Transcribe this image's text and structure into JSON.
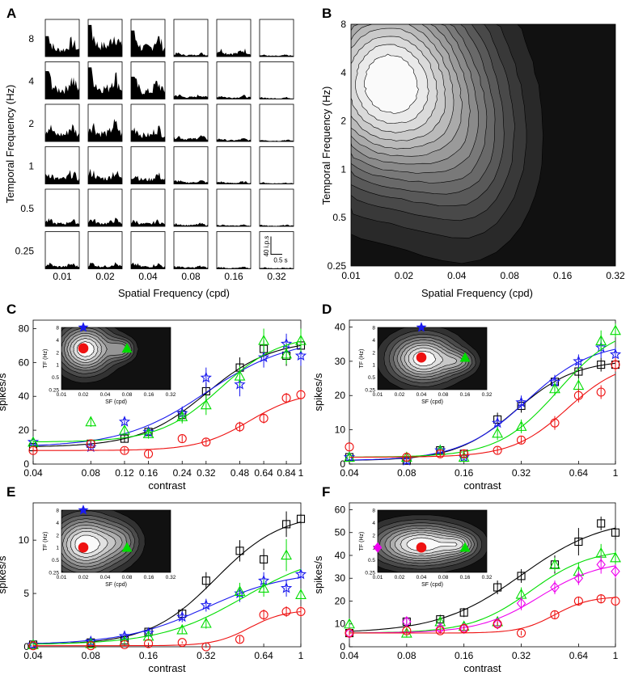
{
  "panel_letters": [
    "A",
    "B",
    "C",
    "D",
    "E",
    "F"
  ],
  "panel_a": {
    "tf_labels": [
      "8",
      "4",
      "2",
      "1",
      "0.5",
      "0.25"
    ],
    "sf_labels": [
      "0.01",
      "0.02",
      "0.04",
      "0.08",
      "0.16",
      "0.32"
    ],
    "xlabel": "Spatial Frequency (cpd)",
    "ylabel": "Temporal Frequency (Hz)",
    "scale_bar": {
      "rate_label": "40 i.p.s",
      "time_label": "0.5 s"
    },
    "response_heights": [
      [
        0.55,
        0.85,
        0.7,
        0.12,
        0.25,
        0.06
      ],
      [
        0.75,
        0.85,
        0.6,
        0.15,
        0.12,
        0.06
      ],
      [
        0.55,
        0.65,
        0.5,
        0.2,
        0.1,
        0.06
      ],
      [
        0.4,
        0.45,
        0.35,
        0.12,
        0.08,
        0.05
      ],
      [
        0.22,
        0.25,
        0.2,
        0.1,
        0.06,
        0.05
      ],
      [
        0.18,
        0.2,
        0.18,
        0.1,
        0.06,
        0.05
      ]
    ]
  },
  "panel_b": {
    "xlabel": "Spatial Frequency (cpd)",
    "ylabel": "Temporal Frequency (Hz)",
    "x_ticks": [
      "0.01",
      "0.02",
      "0.04",
      "0.08",
      "0.16",
      "0.32"
    ],
    "y_ticks": [
      "0.25",
      "0.5",
      "1",
      "2",
      "4",
      "8"
    ]
  },
  "inset": {
    "xlabel": "SF (cpd)",
    "ylabel": "TF (Hz)",
    "x_ticks": [
      "0.01",
      "0.02",
      "0.04",
      "0.08",
      "0.16",
      "0.32"
    ],
    "y_ticks": [
      "0.25",
      "0.5",
      "1",
      "2",
      "4",
      "8"
    ]
  },
  "colors": {
    "black": "#000000",
    "blue": "#1a1aee",
    "green": "#00dd00",
    "red": "#ee1111",
    "magenta": "#ee00ee"
  },
  "chart_data": [
    {
      "panel": "C",
      "type": "scatter",
      "xlabel": "contrast",
      "ylabel": "spikes/s",
      "x_ticks": [
        "0.04",
        "0.08",
        "0.12",
        "0.16",
        "0.24",
        "0.32",
        "0.48",
        "0.64",
        "0.84",
        "1"
      ],
      "y_ticks": [
        "0",
        "20",
        "40",
        "60",
        "80"
      ],
      "ylim": [
        0,
        85
      ],
      "x": [
        0.04,
        0.08,
        0.12,
        0.16,
        0.24,
        0.32,
        0.48,
        0.64,
        0.84,
        1
      ],
      "series": [
        {
          "name": "black",
          "marker": "square",
          "values": [
            10,
            12,
            15,
            19,
            29,
            43,
            57,
            68,
            64,
            70
          ],
          "err": [
            2,
            2,
            2,
            3,
            4,
            5,
            6,
            5,
            6,
            6
          ]
        },
        {
          "name": "blue",
          "marker": "star",
          "values": [
            13,
            10,
            25,
            19,
            30,
            51,
            47,
            63,
            71,
            64
          ],
          "err": [
            2,
            2,
            3,
            3,
            4,
            6,
            7,
            6,
            6,
            6
          ]
        },
        {
          "name": "green",
          "marker": "triangle",
          "values": [
            13,
            25,
            20,
            18,
            28,
            35,
            52,
            73,
            65,
            73
          ],
          "err": [
            2,
            3,
            3,
            3,
            4,
            6,
            6,
            7,
            6,
            7
          ]
        },
        {
          "name": "red",
          "marker": "circle",
          "values": [
            8,
            12,
            8,
            6,
            15,
            13,
            22,
            27,
            39,
            41
          ],
          "err": [
            2,
            2,
            2,
            2,
            2,
            2,
            3,
            3,
            3,
            3
          ]
        }
      ],
      "inset_points": [
        {
          "sf": 0.02,
          "tf": 2.5,
          "marker": "circle",
          "color": "red"
        },
        {
          "sf": 0.08,
          "tf": 2.5,
          "marker": "triangle",
          "color": "green"
        },
        {
          "sf": 0.02,
          "tf": 8,
          "marker": "star",
          "color": "blue"
        }
      ]
    },
    {
      "panel": "D",
      "type": "scatter",
      "xlabel": "contrast",
      "ylabel": "spikes/s",
      "x_ticks": [
        "0.04",
        "0.08",
        "0.16",
        "0.32",
        "0.64",
        "1"
      ],
      "y_ticks": [
        "0",
        "10",
        "20",
        "30",
        "40"
      ],
      "ylim": [
        0,
        42
      ],
      "x": [
        0.04,
        0.08,
        0.12,
        0.16,
        0.24,
        0.32,
        0.48,
        0.64,
        0.84,
        1
      ],
      "series": [
        {
          "name": "black",
          "marker": "square",
          "values": [
            2,
            1,
            4,
            3,
            13,
            17,
            24,
            27,
            29,
            29
          ],
          "err": [
            1,
            1,
            1,
            1,
            2,
            2,
            2,
            2,
            2,
            2
          ]
        },
        {
          "name": "blue",
          "marker": "star",
          "values": [
            2,
            1,
            4,
            2,
            12,
            18,
            24,
            30,
            34,
            32
          ],
          "err": [
            1,
            1,
            1,
            1,
            2,
            2,
            2,
            2,
            3,
            2
          ]
        },
        {
          "name": "green",
          "marker": "triangle",
          "values": [
            2,
            2,
            4,
            2,
            9,
            11,
            22,
            23,
            36,
            39
          ],
          "err": [
            1,
            1,
            1,
            1,
            2,
            2,
            2,
            2,
            3,
            2
          ]
        },
        {
          "name": "red",
          "marker": "circle",
          "values": [
            5,
            2,
            3,
            3,
            4,
            7,
            12,
            20,
            21,
            29
          ],
          "err": [
            1,
            1,
            1,
            1,
            1,
            1,
            2,
            2,
            2,
            2
          ]
        }
      ],
      "inset_points": [
        {
          "sf": 0.04,
          "tf": 1.5,
          "marker": "circle",
          "color": "red"
        },
        {
          "sf": 0.16,
          "tf": 1.5,
          "marker": "triangle",
          "color": "green"
        },
        {
          "sf": 0.04,
          "tf": 8,
          "marker": "star",
          "color": "blue"
        }
      ]
    },
    {
      "panel": "E",
      "type": "scatter",
      "xlabel": "contrast",
      "ylabel": "spikes/s",
      "x_ticks": [
        "0.04",
        "0.08",
        "0.16",
        "0.32",
        "0.64",
        "1"
      ],
      "y_ticks": [
        "0",
        "5",
        "10"
      ],
      "ylim": [
        0,
        13.5
      ],
      "x": [
        0.04,
        0.08,
        0.12,
        0.16,
        0.24,
        0.32,
        0.48,
        0.64,
        0.84,
        1
      ],
      "series": [
        {
          "name": "black",
          "marker": "square",
          "values": [
            0.2,
            0.4,
            0.6,
            1.4,
            3.1,
            6.2,
            9.0,
            8.2,
            11.5,
            12.0
          ],
          "err": [
            0.1,
            0.2,
            0.2,
            0.3,
            0.5,
            0.8,
            1.0,
            1.0,
            1.2,
            0.5
          ]
        },
        {
          "name": "blue",
          "marker": "star",
          "values": [
            0.2,
            0.5,
            1.0,
            1.3,
            2.8,
            3.9,
            5.0,
            6.2,
            5.5,
            6.8
          ],
          "err": [
            0.1,
            0.2,
            0.3,
            0.3,
            0.5,
            0.6,
            0.8,
            0.8,
            0.8,
            0.5
          ]
        },
        {
          "name": "green",
          "marker": "triangle",
          "values": [
            0.2,
            0.3,
            0.5,
            1.0,
            1.6,
            2.2,
            5.2,
            5.5,
            8.6,
            4.9
          ],
          "err": [
            0.1,
            0.1,
            0.2,
            0.3,
            0.4,
            0.5,
            0.8,
            0.8,
            1.5,
            0.5
          ]
        },
        {
          "name": "red",
          "marker": "circle",
          "values": [
            0.1,
            0.1,
            0.2,
            0.3,
            0.4,
            0.0,
            0.7,
            3.0,
            3.3,
            3.3
          ],
          "err": [
            0.1,
            0.1,
            0.1,
            0.1,
            0.1,
            0.1,
            0.3,
            0.5,
            0.5,
            0.5
          ]
        }
      ],
      "inset_points": [
        {
          "sf": 0.02,
          "tf": 1.0,
          "marker": "circle",
          "color": "red"
        },
        {
          "sf": 0.08,
          "tf": 1.0,
          "marker": "triangle",
          "color": "green"
        },
        {
          "sf": 0.02,
          "tf": 8,
          "marker": "star",
          "color": "blue"
        }
      ]
    },
    {
      "panel": "F",
      "type": "scatter",
      "xlabel": "contrast",
      "ylabel": "spikes/s",
      "x_ticks": [
        "0.04",
        "0.08",
        "0.16",
        "0.32",
        "0.64",
        "1"
      ],
      "y_ticks": [
        "0",
        "10",
        "20",
        "30",
        "40",
        "50",
        "60"
      ],
      "ylim": [
        0,
        63
      ],
      "x": [
        0.04,
        0.08,
        0.12,
        0.16,
        0.24,
        0.32,
        0.48,
        0.64,
        0.84,
        1
      ],
      "series": [
        {
          "name": "black",
          "marker": "square",
          "values": [
            6,
            11,
            12,
            15,
            26,
            31,
            36,
            46,
            54,
            50
          ],
          "err": [
            2,
            2,
            2,
            2,
            3,
            3,
            4,
            6,
            3,
            3
          ]
        },
        {
          "name": "green",
          "marker": "triangle",
          "values": [
            10,
            6,
            11,
            9,
            11,
            23,
            36,
            33,
            41,
            39
          ],
          "err": [
            2,
            2,
            2,
            2,
            2,
            3,
            3,
            4,
            4,
            3
          ]
        },
        {
          "name": "magenta",
          "marker": "diamond",
          "values": [
            6,
            11,
            8,
            8,
            10,
            19,
            26,
            30,
            36,
            33
          ],
          "err": [
            2,
            2,
            2,
            2,
            2,
            3,
            3,
            3,
            4,
            3
          ]
        },
        {
          "name": "red",
          "marker": "circle",
          "values": [
            6,
            7,
            7,
            8,
            10,
            6,
            14,
            20,
            21,
            20
          ],
          "err": [
            1,
            1,
            1,
            1,
            1,
            1,
            2,
            2,
            2,
            2
          ]
        }
      ],
      "inset_points": [
        {
          "sf": 0.04,
          "tf": 1.0,
          "marker": "circle",
          "color": "red"
        },
        {
          "sf": 0.16,
          "tf": 1.0,
          "marker": "triangle",
          "color": "green"
        },
        {
          "sf": 0.01,
          "tf": 1.0,
          "marker": "diamond",
          "color": "magenta"
        }
      ]
    }
  ]
}
